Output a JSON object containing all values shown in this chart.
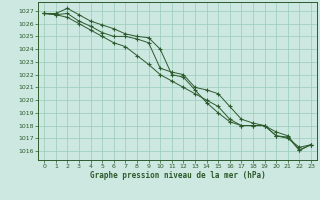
{
  "background_color": "#cce8e0",
  "grid_color": "#99ccbb",
  "line_color": "#2d5a2d",
  "x_label": "Graphe pression niveau de la mer (hPa)",
  "x_ticks": [
    0,
    1,
    2,
    3,
    4,
    5,
    6,
    7,
    8,
    9,
    10,
    11,
    12,
    13,
    14,
    15,
    16,
    17,
    18,
    19,
    20,
    21,
    22,
    23
  ],
  "y_ticks": [
    1016,
    1017,
    1018,
    1019,
    1020,
    1021,
    1022,
    1023,
    1024,
    1025,
    1026,
    1027
  ],
  "ylim": [
    1015.3,
    1027.7
  ],
  "xlim": [
    -0.5,
    23.5
  ],
  "line1": [
    1026.8,
    1026.8,
    1027.2,
    1026.7,
    1026.2,
    1025.9,
    1025.6,
    1025.2,
    1025.0,
    1024.9,
    1024.0,
    1022.0,
    1021.8,
    1020.8,
    1019.8,
    1019.0,
    1018.3,
    1018.0,
    1018.0,
    1018.0,
    1017.2,
    1017.1,
    1016.05,
    1016.5
  ],
  "line2": [
    1026.8,
    1026.7,
    1026.8,
    1026.2,
    1025.8,
    1025.3,
    1025.0,
    1025.0,
    1024.8,
    1024.5,
    1022.5,
    1022.2,
    1022.0,
    1021.0,
    1020.8,
    1020.5,
    1019.5,
    1018.5,
    1018.2,
    1018.0,
    1017.5,
    1017.2,
    1016.1,
    1016.5
  ],
  "line3": [
    1026.8,
    1026.7,
    1026.5,
    1026.0,
    1025.5,
    1025.0,
    1024.5,
    1024.2,
    1023.5,
    1022.8,
    1022.0,
    1021.5,
    1021.0,
    1020.5,
    1020.0,
    1019.5,
    1018.5,
    1018.0,
    1018.0,
    1018.0,
    1017.2,
    1017.0,
    1016.3,
    1016.5
  ]
}
